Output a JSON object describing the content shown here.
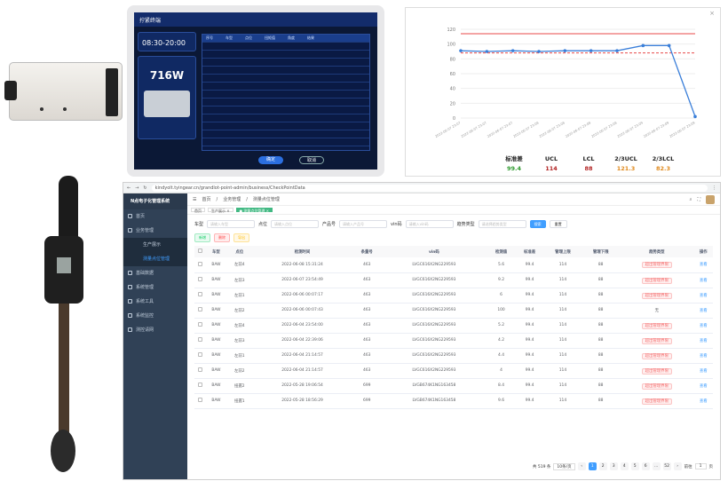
{
  "tablet": {
    "app_title": "拧紧终端",
    "date_label": "08:30-20:00",
    "big_value": "716W",
    "columns": [
      "序号",
      "车型",
      "点位",
      "扭矩值",
      "角度",
      "结果"
    ],
    "confirm_label": "确定",
    "cancel_label": "取消"
  },
  "chart_data": {
    "type": "line",
    "x": [
      "2022-06-07 23:07",
      "2022-06-07 23:07",
      "2022-06-07 23:07",
      "2022-06-07 23:08",
      "2022-06-07 23:08",
      "2022-06-07 23:08",
      "2022-06-07 23:08",
      "2022-06-07 23:09",
      "2022-06-07 23:09",
      "2022-06-07 23:09"
    ],
    "values": [
      91,
      90,
      91,
      90,
      91,
      91,
      91,
      98,
      98,
      2
    ],
    "ylim": [
      0,
      120
    ],
    "yticks": [
      0,
      20,
      40,
      60,
      80,
      100,
      120
    ],
    "ucl_line": 114,
    "lcl_line": 88,
    "stats": [
      {
        "label": "标准差",
        "value": "99.4",
        "color": "#2e9a2e"
      },
      {
        "label": "UCL",
        "value": "114",
        "color": "#b22222"
      },
      {
        "label": "LCL",
        "value": "88",
        "color": "#b22222"
      },
      {
        "label": "2/3UCL",
        "value": "121.3",
        "color": "#e08a1e"
      },
      {
        "label": "2/3LCL",
        "value": "82.3",
        "color": "#e08a1e"
      }
    ]
  },
  "browser": {
    "url": "kindyolt.tyingear.cn/grandlot-point-admin/business/CheckPointData"
  },
  "sidebar": {
    "brand": "N点电子化管理系统",
    "items": [
      {
        "label": "首页"
      },
      {
        "label": "业务管理"
      },
      {
        "label": "生产展示"
      },
      {
        "label": "测量点位管理"
      },
      {
        "label": "基础数据"
      },
      {
        "label": "系统管理"
      },
      {
        "label": "系统工具"
      },
      {
        "label": "系统监控"
      },
      {
        "label": "测控请网"
      }
    ]
  },
  "navbar": {
    "breadcrumb_home": "首页",
    "breadcrumb_1": "业务管理",
    "breadcrumb_2": "测量点位管理"
  },
  "tags": [
    "首页",
    "生产展示 ×",
    "● 测量点位管理 ×"
  ],
  "filters": {
    "car_label": "车型",
    "car_ph": "请输入车型",
    "point_label": "点位",
    "point_ph": "请输入点位",
    "line_label": "产品号",
    "line_ph": "请输入产品号",
    "vin_label": "vin码",
    "vin_ph": "请输入vin码",
    "judge_label": "趋势类型",
    "judge_ph": "请选择趋势类型",
    "search_label": "搜索",
    "reset_label": "重置"
  },
  "actions": {
    "add": "新增",
    "delete": "删除",
    "export": "导出"
  },
  "table": {
    "headers": [
      "车型",
      "点位",
      "检测时间",
      "条量号",
      "vin码",
      "检测值",
      "标准差",
      "管理上限",
      "管理下限",
      "趋势类型",
      "操作"
    ],
    "rows": [
      [
        "BAW",
        "左前4",
        "2022-06-08 15:31:24",
        "463",
        "LVGC616X2NG229593",
        "5.6",
        "99.4",
        "114",
        "88",
        "超出管理界限",
        "查看"
      ],
      [
        "BAW",
        "左前3",
        "2022-06-07 23:54:49",
        "463",
        "LVGC616X2NG229593",
        "9.2",
        "99.4",
        "114",
        "88",
        "超出管理界限",
        "查看"
      ],
      [
        "BAW",
        "左前1",
        "2022-06-06 00:07:17",
        "463",
        "LVGC616X2NG229593",
        "6",
        "99.4",
        "114",
        "88",
        "超出管理界限",
        "查看"
      ],
      [
        "BAW",
        "左前2",
        "2022-06-06 00:07:43",
        "463",
        "LVGC616X2NG229593",
        "100",
        "99.4",
        "114",
        "88",
        "无",
        "查看"
      ],
      [
        "BAW",
        "左前4",
        "2022-06-04 23:54:00",
        "463",
        "LVGC616X2NG229593",
        "5.2",
        "99.4",
        "114",
        "88",
        "超出管理界限",
        "查看"
      ],
      [
        "BAW",
        "左前3",
        "2022-06-04 22:39:06",
        "463",
        "LVGC616X2NG229593",
        "4.2",
        "99.4",
        "114",
        "88",
        "超出管理界限",
        "查看"
      ],
      [
        "BAW",
        "左前1",
        "2022-06-04 21:14:57",
        "463",
        "LVGC616X2NG229593",
        "4.4",
        "99.4",
        "114",
        "88",
        "超出管理界限",
        "查看"
      ],
      [
        "BAW",
        "左前2",
        "2022-06-04 21:14:57",
        "463",
        "LVGC616X2NG229593",
        "4",
        "99.4",
        "114",
        "88",
        "超出管理界限",
        "查看"
      ],
      [
        "BAW",
        "扭握2",
        "2022-05-28 19:06:54",
        "699",
        "LVGB674K1NG163458",
        "8.4",
        "99.4",
        "114",
        "88",
        "超出管理界限",
        "查看"
      ],
      [
        "BAW",
        "扭握1",
        "2022-05-28 18:56:29",
        "699",
        "LVGB674K1NG163458",
        "9.6",
        "99.4",
        "114",
        "88",
        "超出管理界限",
        "查看"
      ]
    ]
  },
  "pager": {
    "total": "共 519 条",
    "size": "10条/页",
    "pages": [
      "1",
      "2",
      "3",
      "4",
      "5",
      "6",
      "…",
      "52"
    ],
    "goto": "前往",
    "goto_value": "1",
    "page_unit": "页"
  }
}
